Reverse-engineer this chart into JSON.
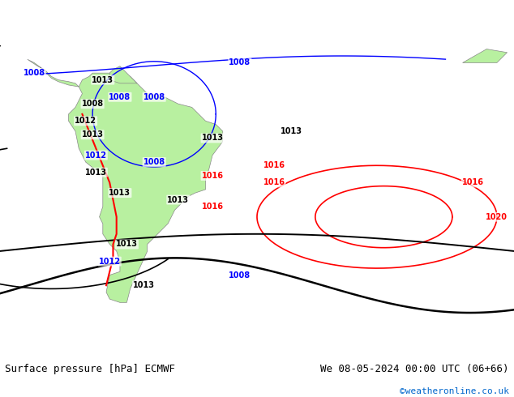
{
  "title_left": "Surface pressure [hPa] ECMWF",
  "title_right": "We 08-05-2024 00:00 UTC (06+66)",
  "copyright": "©weatheronline.co.uk",
  "bg_color": "#d0d8e8",
  "land_color": "#b8f0a0",
  "border_color": "#888888",
  "text_color_black": "#000000",
  "text_color_blue": "#0000cc",
  "text_color_red": "#cc0000",
  "text_color_cyan": "#00aacc",
  "figsize": [
    6.34,
    4.9
  ],
  "dpi": 100,
  "footer_fontsize": 9,
  "copyright_color": "#0066cc"
}
